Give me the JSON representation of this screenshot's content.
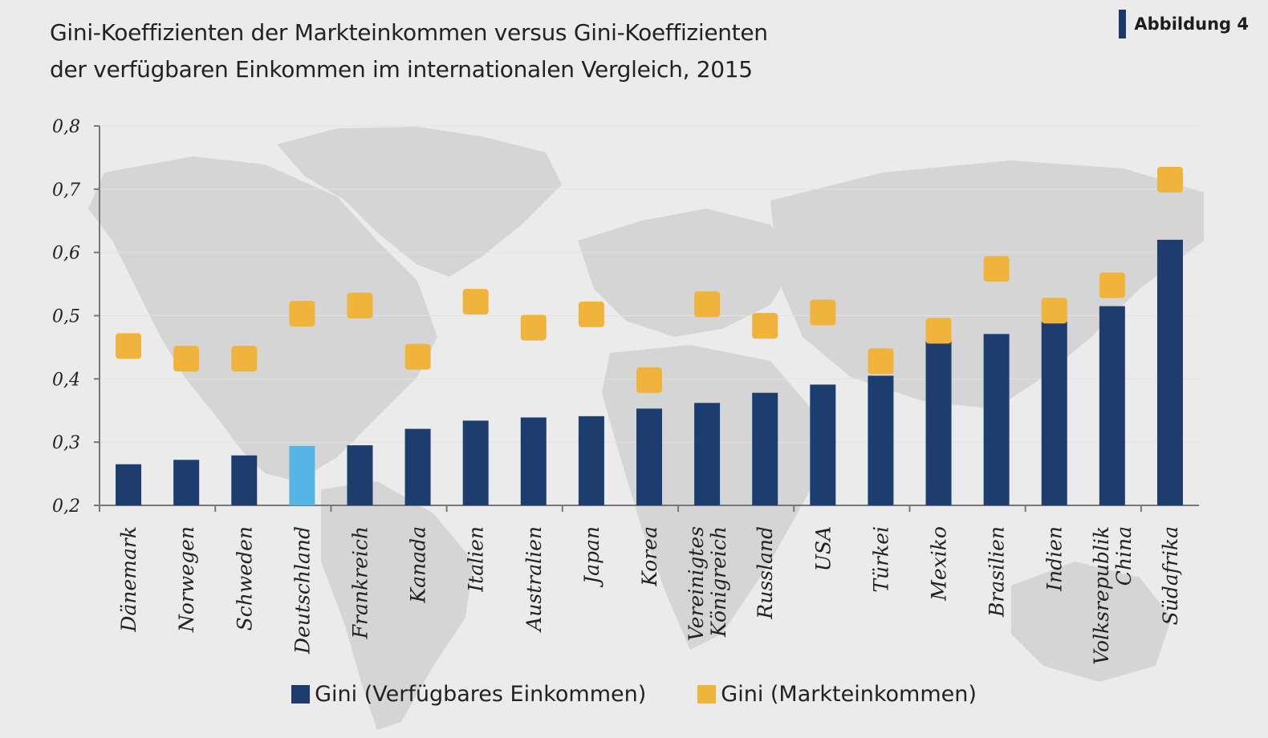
{
  "header": {
    "title_line1": "Gini-Koeffizienten der Markteinkommen versus Gini-Koeffizienten",
    "title_line2": "der verfügbaren Einkommen im internationalen Vergleich, 2015",
    "figure_label": "Abbildung 4"
  },
  "colors": {
    "bar": "#1c3d6e",
    "bar_highlight": "#56b4e6",
    "marker": "#f0b43c",
    "axis": "#777777",
    "background": "#ebebeb",
    "map": "#d6d6d6"
  },
  "legend": {
    "bar_label": "Gini (Verfügbares Einkommen)",
    "marker_label": "Gini (Markteinkommen)"
  },
  "chart_data": {
    "type": "bar",
    "categories": [
      "Dänemark",
      "Norwegen",
      "Schweden",
      "Deutschland",
      "Frankreich",
      "Kanada",
      "Italien",
      "Australien",
      "Japan",
      "Korea",
      "Vereinigtes Königreich",
      "Russland",
      "USA",
      "Türkei",
      "Mexiko",
      "Brasilien",
      "Indien",
      "Volksrepublik China",
      "Südafrika"
    ],
    "highlight": "Deutschland",
    "series": [
      {
        "name": "Gini (Verfügbares Einkommen)",
        "mark": "bar",
        "values": [
          0.265,
          0.272,
          0.279,
          0.294,
          0.295,
          0.321,
          0.334,
          0.339,
          0.341,
          0.353,
          0.362,
          0.378,
          0.391,
          0.405,
          0.46,
          0.471,
          0.491,
          0.515,
          0.62
        ]
      },
      {
        "name": "Gini (Markteinkommen)",
        "mark": "square",
        "values": [
          0.452,
          0.432,
          0.432,
          0.503,
          0.516,
          0.435,
          0.522,
          0.481,
          0.502,
          0.398,
          0.518,
          0.484,
          0.505,
          0.428,
          0.476,
          0.574,
          0.508,
          0.548,
          0.715
        ]
      }
    ],
    "y_ticks": [
      "0,2",
      "0,3",
      "0,4",
      "0,5",
      "0,6",
      "0,7",
      "0,8"
    ],
    "ylim": [
      0.2,
      0.8
    ],
    "grid": true,
    "legend_position": "bottom"
  }
}
